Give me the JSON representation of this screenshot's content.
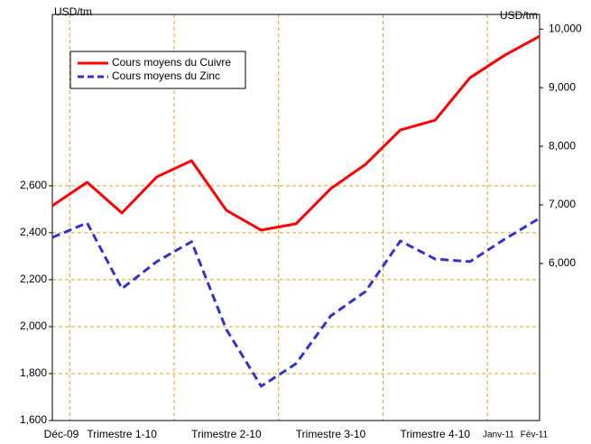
{
  "chart_data": {
    "type": "line",
    "y_label": "USD/tm",
    "y2_label": "USD/tm",
    "categories": [
      "Déc-09",
      null,
      "Trimestre 1-10",
      null,
      null,
      "Trimestre 2-10",
      null,
      null,
      "Trimestre 3-10",
      null,
      null,
      "Trimestre 4-10",
      null,
      "Janv-11",
      "Fév-11"
    ],
    "series": [
      {
        "name": "Cours moyens du Cuivre",
        "color": "#ff0000",
        "dash": false,
        "axis": "y2",
        "values": [
          6985,
          7385,
          6862,
          7477,
          7754,
          6908,
          6569,
          6677,
          7277,
          7692,
          8277,
          8446,
          9169,
          9554,
          9877
        ]
      },
      {
        "name": "Cours moyens du Zinc",
        "color": "#3333cc",
        "dash": true,
        "axis": "y",
        "values": [
          2380,
          2442,
          2162,
          2277,
          2362,
          1988,
          1746,
          1842,
          2046,
          2150,
          2365,
          2288,
          2277,
          2373,
          2462
        ]
      }
    ],
    "ylim": [
      1600,
      3330
    ],
    "yticks": [
      {
        "value": 1600,
        "label": "1,600"
      },
      {
        "value": 1800,
        "label": "1,800"
      },
      {
        "value": 2000,
        "label": "2,000"
      },
      {
        "value": 2200,
        "label": "2,200"
      },
      {
        "value": 2400,
        "label": "2,400"
      },
      {
        "value": 2600,
        "label": "2,600"
      }
    ],
    "y2lim": [
      3320,
      10250
    ],
    "y2ticks": [
      {
        "value": 6000,
        "label": "6,000"
      },
      {
        "value": 7000,
        "label": "7,000"
      },
      {
        "value": 8000,
        "label": "8,000"
      },
      {
        "value": 9000,
        "label": "9,000"
      },
      {
        "value": 10000,
        "label": "10,000"
      }
    ],
    "grid": true,
    "legend": "upper left"
  }
}
